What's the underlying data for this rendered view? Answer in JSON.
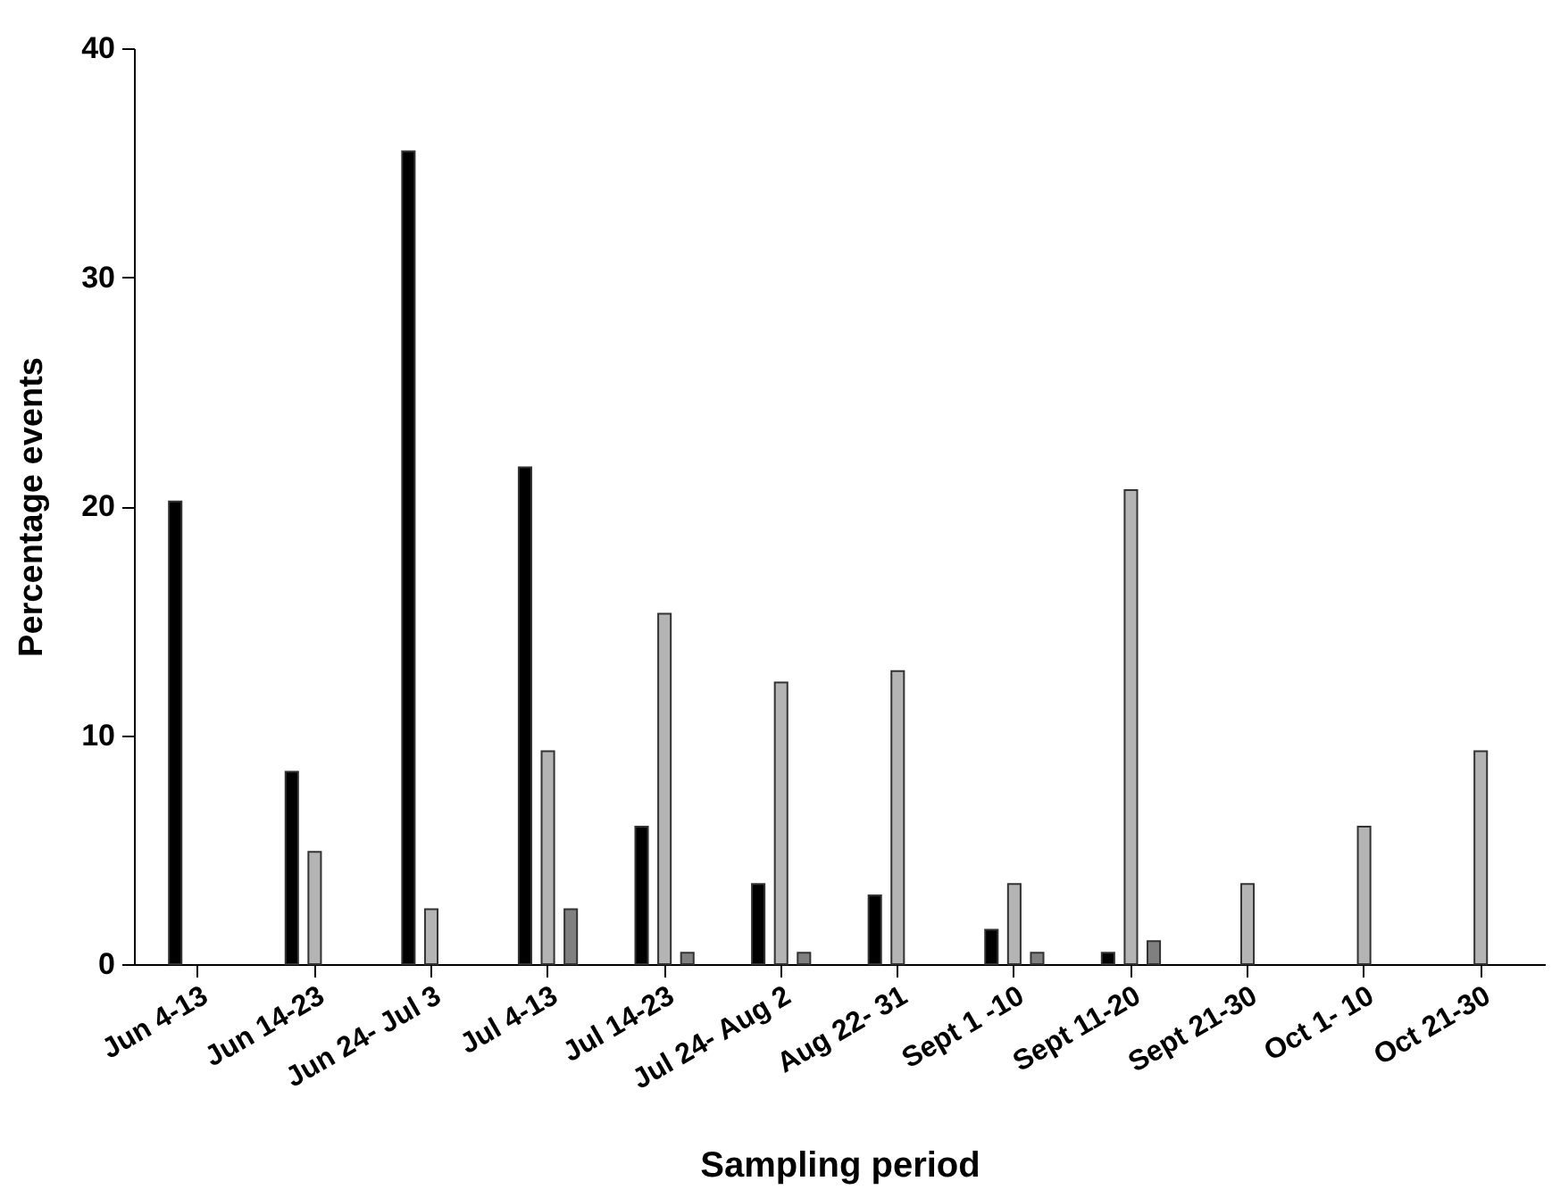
{
  "chart_data": {
    "type": "bar",
    "xlabel": "Sampling period",
    "ylabel": "Percentage events",
    "categories": [
      "Jun 4-13",
      "Jun 14-23",
      "Jun 24- Jul 3",
      "Jul 4-13",
      "Jul 14-23",
      "Jul 24- Aug 2",
      "Aug 22- 31",
      "Sept 1 -10",
      "Sept 11-20",
      "Sept 21-30",
      "Oct 1- 10",
      "Oct 21-30"
    ],
    "series": [
      {
        "color": "#000000",
        "values": [
          20.2,
          8.4,
          35.5,
          21.7,
          6.0,
          3.5,
          3.0,
          1.5,
          0.5,
          null,
          null,
          null
        ]
      },
      {
        "color": "#b4b4b4",
        "values": [
          null,
          4.9,
          2.4,
          9.3,
          15.3,
          12.3,
          12.8,
          3.5,
          20.7,
          3.5,
          6.0,
          9.3
        ]
      },
      {
        "color": "#808080",
        "values": [
          null,
          null,
          null,
          2.4,
          0.5,
          0.5,
          null,
          0.5,
          1.0,
          null,
          null,
          null
        ]
      }
    ],
    "ylim": [
      0,
      40
    ],
    "yticks": [
      0,
      10,
      20,
      30,
      40
    ]
  }
}
